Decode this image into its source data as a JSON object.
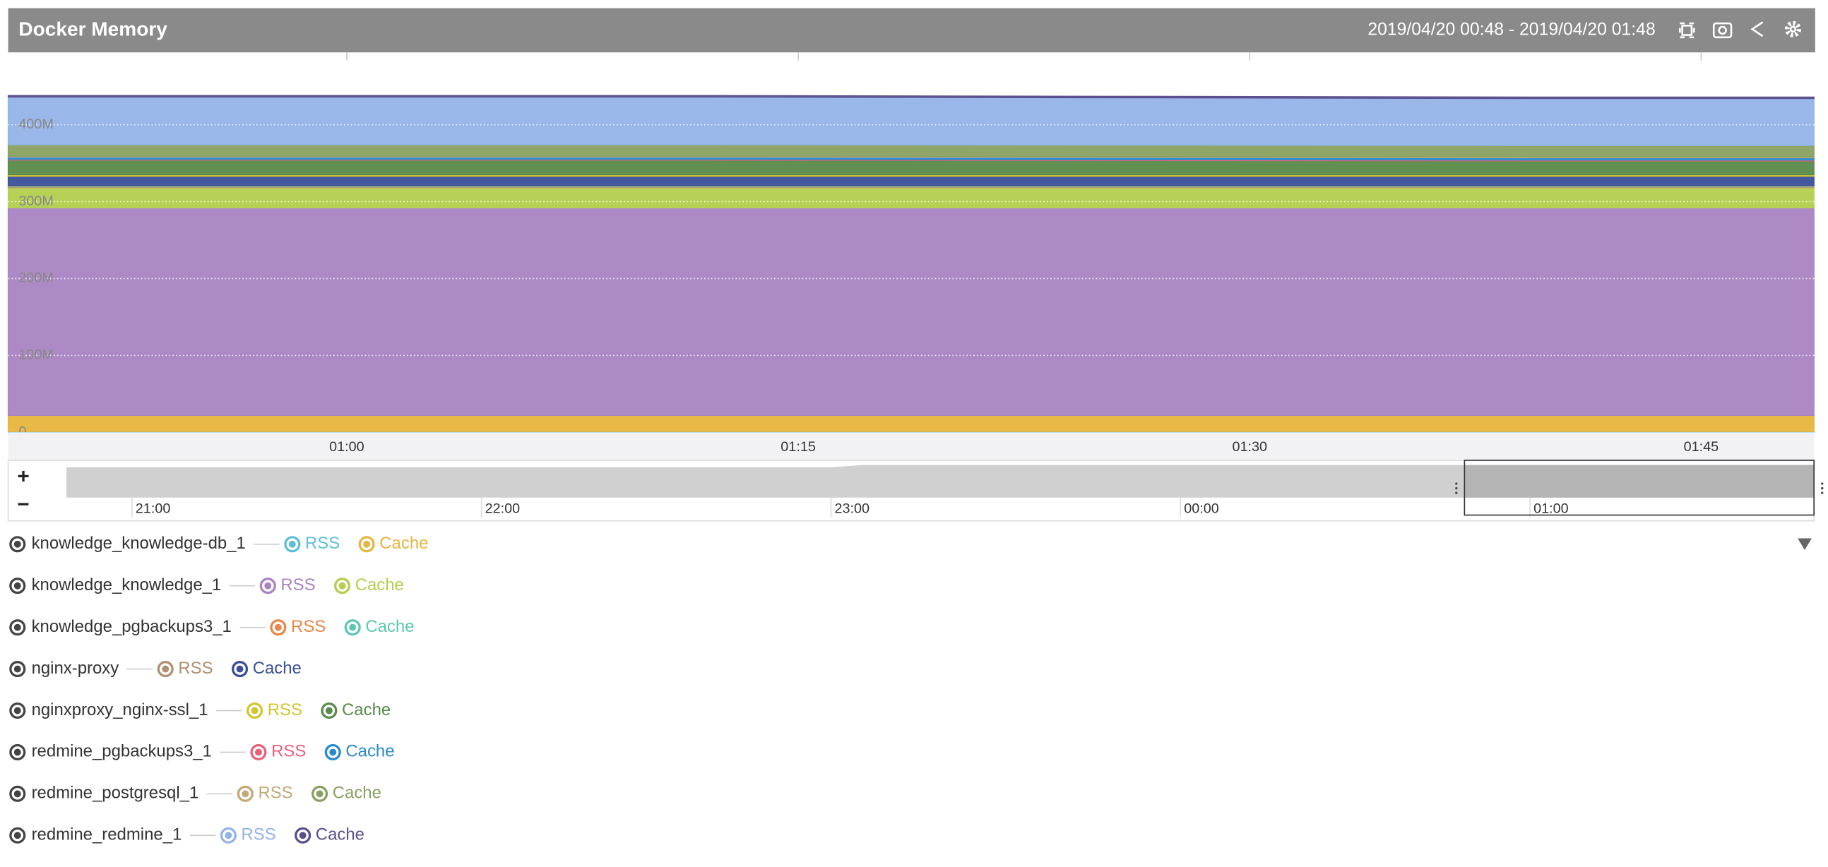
{
  "header": {
    "title": "Docker Memory",
    "range": "2019/04/20 00:48 - 2019/04/20 01:48"
  },
  "chart_data": {
    "type": "area",
    "stacked": true,
    "x": [
      48.75,
      70,
      72,
      100,
      108.75
    ],
    "xlim": [
      48.75,
      108.75
    ],
    "xticks": [
      {
        "value": 60,
        "label": "01:00"
      },
      {
        "value": 75,
        "label": "01:15"
      },
      {
        "value": 90,
        "label": "01:30"
      },
      {
        "value": 105,
        "label": "01:45"
      }
    ],
    "ylim": [
      0,
      494000000
    ],
    "yticks": [
      0,
      {
        "value": 100000000,
        "label": "100M"
      },
      {
        "value": 200000000,
        "label": "200M"
      },
      {
        "value": 300000000,
        "label": "300M"
      },
      {
        "value": 400000000,
        "label": "400M"
      }
    ],
    "grid": true,
    "series": [
      {
        "name": "knowledge_knowledge-db_1",
        "members": [
          {
            "name": "RSS",
            "color": "#5bc0d6",
            "values": [
              1000000,
              1000000,
              1000000,
              1000000,
              1000000
            ]
          },
          {
            "name": "Cache",
            "color": "#e8b53e",
            "values": [
              21000000,
              21000000,
              21000000,
              21000000,
              21000000
            ]
          }
        ]
      },
      {
        "name": "knowledge_knowledge_1",
        "members": [
          {
            "name": "RSS",
            "color": "#a984c2",
            "values": [
              270000000,
              270000000,
              270000000,
              270000000,
              270000000
            ]
          },
          {
            "name": "Cache",
            "color": "#b3cf4e",
            "values": [
              26000000,
              26000000,
              26000000,
              26000000,
              26000000
            ]
          }
        ]
      },
      {
        "name": "knowledge_pgbackups3_1",
        "members": [
          {
            "name": "RSS",
            "color": "#e8874a",
            "values": [
              1000000,
              1000000,
              1000000,
              1000000,
              1000000
            ]
          },
          {
            "name": "Cache",
            "color": "#5cc8b0",
            "values": [
              1000000,
              1000000,
              1000000,
              1000000,
              1000000
            ]
          }
        ]
      },
      {
        "name": "nginx-proxy",
        "members": [
          {
            "name": "RSS",
            "color": "#b09070",
            "values": [
              1000000,
              1000000,
              1000000,
              1000000,
              1000000
            ]
          },
          {
            "name": "Cache",
            "color": "#3a4f9a",
            "values": [
              12000000,
              12000000,
              12000000,
              12000000,
              12000000
            ]
          }
        ]
      },
      {
        "name": "nginxproxy_nginx-ssl_1",
        "members": [
          {
            "name": "RSS",
            "color": "#d4c430",
            "values": [
              2000000,
              2000000,
              2000000,
              2000000,
              2000000
            ]
          },
          {
            "name": "Cache",
            "color": "#5a8a4a",
            "values": [
              19000000,
              19000000,
              19000000,
              18000000,
              18000000
            ]
          }
        ]
      },
      {
        "name": "redmine_pgbackups3_1",
        "members": [
          {
            "name": "RSS",
            "color": "#e8607a",
            "values": [
              1000000,
              1000000,
              1000000,
              1000000,
              1000000
            ]
          },
          {
            "name": "Cache",
            "color": "#2a8acc",
            "values": [
              3000000,
              3000000,
              3000000,
              3000000,
              3000000
            ]
          }
        ]
      },
      {
        "name": "redmine_postgresql_1",
        "members": [
          {
            "name": "RSS",
            "color": "#c4a878",
            "values": [
              1000000,
              1000000,
              1000000,
              1000000,
              1000000
            ]
          },
          {
            "name": "Cache",
            "color": "#8aa060",
            "values": [
              15000000,
              15000000,
              15000000,
              15000000,
              15000000
            ]
          }
        ]
      },
      {
        "name": "redmine_redmine_1",
        "members": [
          {
            "name": "RSS",
            "color": "#93b3e8",
            "values": [
              62000000,
              62000000,
              62000000,
              61000000,
              61000000
            ]
          },
          {
            "name": "Cache",
            "color": "#5a4e8c",
            "values": [
              2000000,
              2000000,
              2000000,
              2000000,
              2000000
            ]
          }
        ]
      }
    ]
  },
  "navigator": {
    "xlim": [
      -191.25,
      108.75
    ],
    "selection": [
      48.75,
      108.75
    ],
    "xticks": [
      {
        "value": -180,
        "label": "21:00"
      },
      {
        "value": -120,
        "label": "22:00"
      },
      {
        "value": -60,
        "label": "23:00"
      },
      {
        "value": 0,
        "label": "00:00"
      },
      {
        "value": 60,
        "label": "01:00"
      }
    ]
  }
}
